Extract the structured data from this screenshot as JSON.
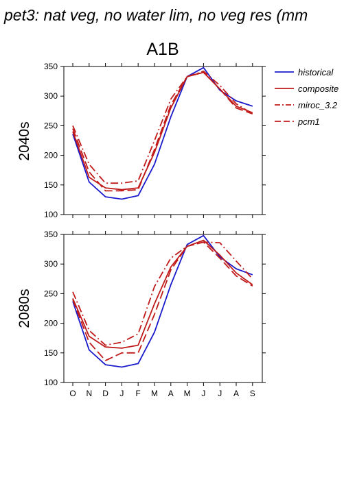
{
  "figure": {
    "title": "pet3: nat veg, no water lim, no veg res (mm",
    "subtitle": "A1B"
  },
  "legend": {
    "items": [
      {
        "label": "historical",
        "color": "#1a1acc",
        "dash": "solid"
      },
      {
        "label": "composite",
        "color": "#c01a1a",
        "dash": "solid"
      },
      {
        "label": "miroc_3.2",
        "color": "#c01a1a",
        "dash": "dashdot"
      },
      {
        "label": "pcm1",
        "color": "#c01a1a",
        "dash": "dash"
      }
    ]
  },
  "chart_data": [
    {
      "type": "line",
      "row_label": "2040s",
      "categories": [
        "O",
        "N",
        "D",
        "J",
        "F",
        "M",
        "A",
        "M",
        "J",
        "J",
        "A",
        "S"
      ],
      "ylim": [
        100,
        350
      ],
      "yticks": [
        100,
        150,
        200,
        250,
        300,
        350
      ],
      "series": [
        {
          "name": "historical",
          "values": [
            236,
            155,
            130,
            126,
            132,
            185,
            265,
            333,
            348,
            310,
            292,
            283
          ]
        },
        {
          "name": "composite",
          "values": [
            240,
            163,
            145,
            142,
            145,
            205,
            280,
            333,
            340,
            312,
            283,
            272
          ]
        },
        {
          "name": "miroc_3.2",
          "values": [
            250,
            185,
            153,
            153,
            157,
            225,
            295,
            333,
            342,
            318,
            287,
            270
          ]
        },
        {
          "name": "pcm1",
          "values": [
            245,
            172,
            140,
            140,
            142,
            210,
            285,
            333,
            340,
            312,
            280,
            270
          ]
        }
      ]
    },
    {
      "type": "line",
      "row_label": "2080s",
      "categories": [
        "O",
        "N",
        "D",
        "J",
        "F",
        "M",
        "A",
        "M",
        "J",
        "J",
        "A",
        "S"
      ],
      "ylim": [
        100,
        350
      ],
      "yticks": [
        100,
        150,
        200,
        250,
        300,
        350
      ],
      "series": [
        {
          "name": "historical",
          "values": [
            237,
            155,
            130,
            126,
            132,
            185,
            265,
            333,
            348,
            312,
            292,
            282
          ]
        },
        {
          "name": "composite",
          "values": [
            242,
            178,
            160,
            158,
            163,
            233,
            295,
            330,
            340,
            315,
            285,
            265
          ]
        },
        {
          "name": "miroc_3.2",
          "values": [
            253,
            188,
            163,
            168,
            182,
            262,
            310,
            330,
            337,
            336,
            305,
            275
          ]
        },
        {
          "name": "pcm1",
          "values": [
            240,
            168,
            137,
            150,
            150,
            215,
            290,
            330,
            337,
            310,
            280,
            263
          ]
        }
      ]
    }
  ]
}
